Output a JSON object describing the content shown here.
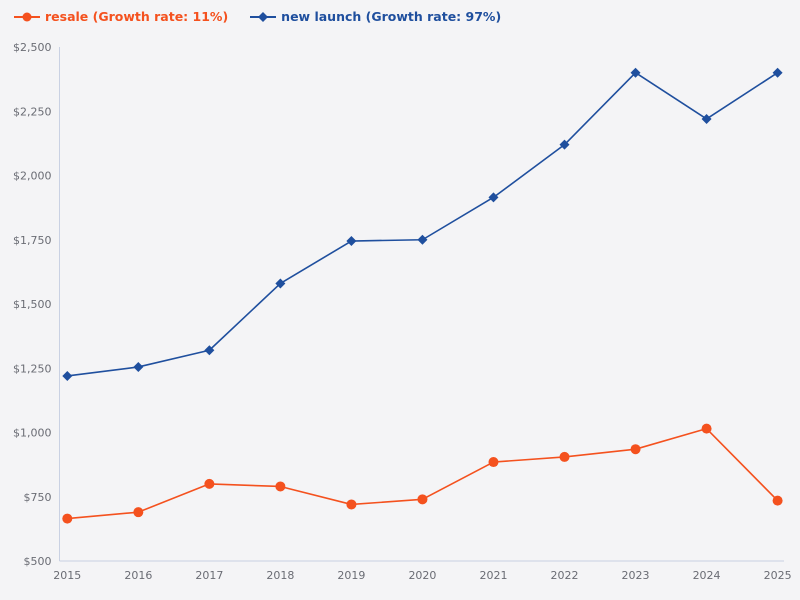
{
  "page": {
    "background_color": "#f4f4f6",
    "axis_color": "#c9d1e3",
    "tick_text_color": "#6a6c74"
  },
  "legend": {
    "items": [
      {
        "id": "resale",
        "label": "resale (Growth rate: 11%)",
        "color": "#f4511e",
        "marker": "circle"
      },
      {
        "id": "new-launch",
        "label": "new launch (Growth rate: 97%)",
        "color": "#1f4f9e",
        "marker": "diamond"
      }
    ]
  },
  "chart_data": {
    "type": "line",
    "title": "",
    "xlabel": "",
    "ylabel": "",
    "x": [
      2015,
      2016,
      2017,
      2018,
      2019,
      2020,
      2021,
      2022,
      2023,
      2024,
      2025
    ],
    "series": [
      {
        "name": "resale (Growth rate: 11%)",
        "color": "#f4511e",
        "marker": "circle",
        "values": [
          665,
          690,
          800,
          790,
          720,
          740,
          885,
          905,
          935,
          1015,
          735
        ]
      },
      {
        "name": "new launch (Growth rate: 97%)",
        "color": "#1f4f9e",
        "marker": "diamond",
        "values": [
          1220,
          1255,
          1320,
          1580,
          1745,
          1750,
          1915,
          2120,
          2400,
          2220,
          2400
        ]
      }
    ],
    "ylim": [
      500,
      2500
    ],
    "ytick_step": 250,
    "ytick_labels": [
      "$500",
      "$750",
      "$1,000",
      "$1,250",
      "$1,500",
      "$1,750",
      "$2,000",
      "$2,250",
      "$2,500"
    ],
    "grid": false,
    "legend_position": "top-left"
  }
}
